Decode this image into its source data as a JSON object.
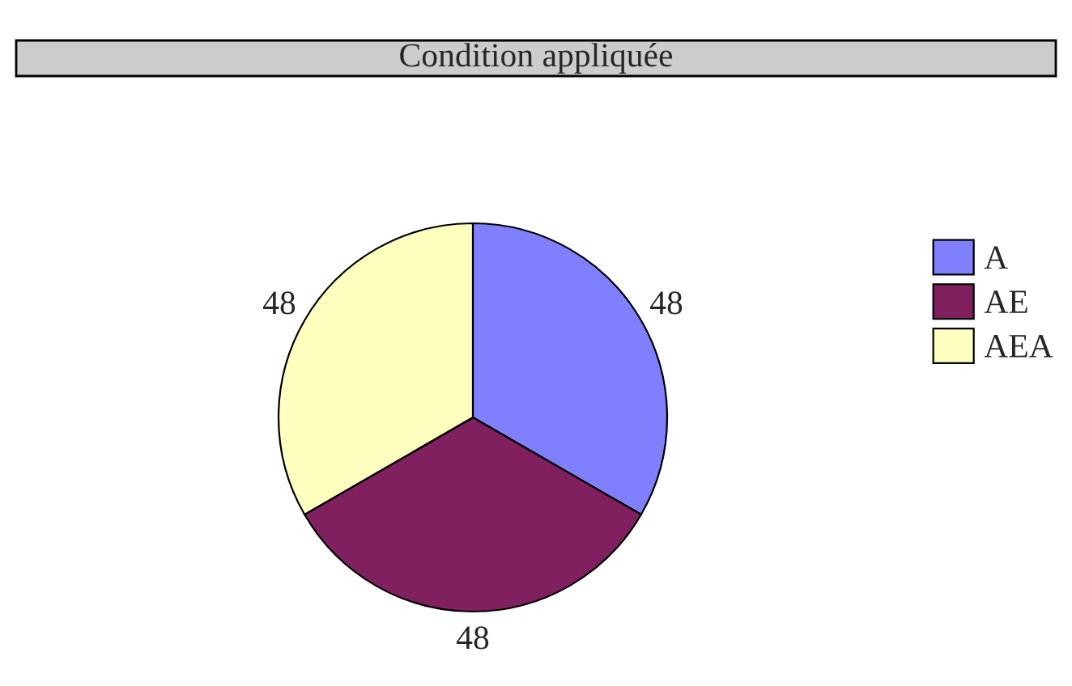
{
  "chart_data": {
    "type": "pie",
    "title": "Condition appliquée",
    "categories": [
      "A",
      "AE",
      "AEA"
    ],
    "values": [
      48,
      48,
      48
    ],
    "colors": [
      "#8080ff",
      "#80205f",
      "#ffffc0"
    ],
    "data_labels": true,
    "legend": "right"
  }
}
